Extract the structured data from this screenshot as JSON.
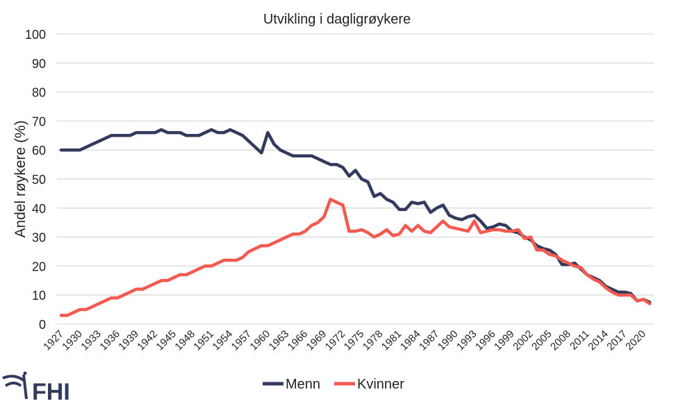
{
  "chart_data": {
    "type": "line",
    "title": "Utvikling i dagligrøykere",
    "xlabel": "",
    "ylabel": "Andel røykere (%)",
    "ylim": [
      0,
      100
    ],
    "yticks": [
      0,
      10,
      20,
      30,
      40,
      50,
      60,
      70,
      80,
      90,
      100
    ],
    "grid": true,
    "legend": "bottom",
    "x_start": 1927,
    "x_end": 2021,
    "xtick_step": 3,
    "series": [
      {
        "name": "Menn",
        "color": "#323a5e",
        "values": [
          60,
          60,
          60,
          60,
          61,
          62,
          63,
          64,
          65,
          65,
          65,
          65,
          66,
          66,
          66,
          66,
          67,
          66,
          66,
          66,
          65,
          65,
          65,
          66,
          67,
          66,
          66,
          67,
          66,
          65,
          63,
          61,
          59,
          66,
          62,
          60,
          59,
          58,
          58,
          58,
          58,
          57,
          56,
          55,
          55,
          54,
          51,
          53,
          50,
          49,
          44,
          45,
          43,
          42,
          39.5,
          39.5,
          42,
          41.5,
          42,
          38.5,
          40,
          41,
          37.5,
          36.5,
          36,
          37,
          37.5,
          35.5,
          33,
          33.5,
          34.5,
          34,
          32,
          31.5,
          30,
          29,
          27,
          26,
          25.5,
          24,
          20.5,
          20.5,
          21,
          19,
          17,
          16,
          15,
          13,
          12,
          11,
          11,
          10.5,
          8,
          8.5,
          7.5
        ]
      },
      {
        "name": "Kvinner",
        "color": "#f4594f",
        "values": [
          3,
          3,
          4,
          5,
          5,
          6,
          7,
          8,
          9,
          9,
          10,
          11,
          12,
          12,
          13,
          14,
          15,
          15,
          16,
          17,
          17,
          18,
          19,
          20,
          20,
          21,
          22,
          22,
          22,
          23,
          25,
          26,
          27,
          27,
          28,
          29,
          30,
          31,
          31,
          32,
          34,
          35,
          37,
          43,
          42,
          41,
          32,
          32,
          32.5,
          31.5,
          30,
          31,
          32.5,
          30.5,
          31,
          34,
          32,
          34,
          32,
          31.5,
          33.5,
          35.5,
          33.5,
          33,
          32.5,
          32,
          35.5,
          31.5,
          32,
          32.5,
          32.5,
          32,
          32,
          32.5,
          29.5,
          30,
          25.5,
          25.5,
          24,
          23.5,
          22,
          21,
          20,
          19.5,
          17,
          15.5,
          14.5,
          12.5,
          11,
          10,
          10,
          10,
          8,
          8.5,
          7
        ]
      }
    ]
  },
  "logo": {
    "text": "FHI",
    "color": "#323a5e"
  }
}
